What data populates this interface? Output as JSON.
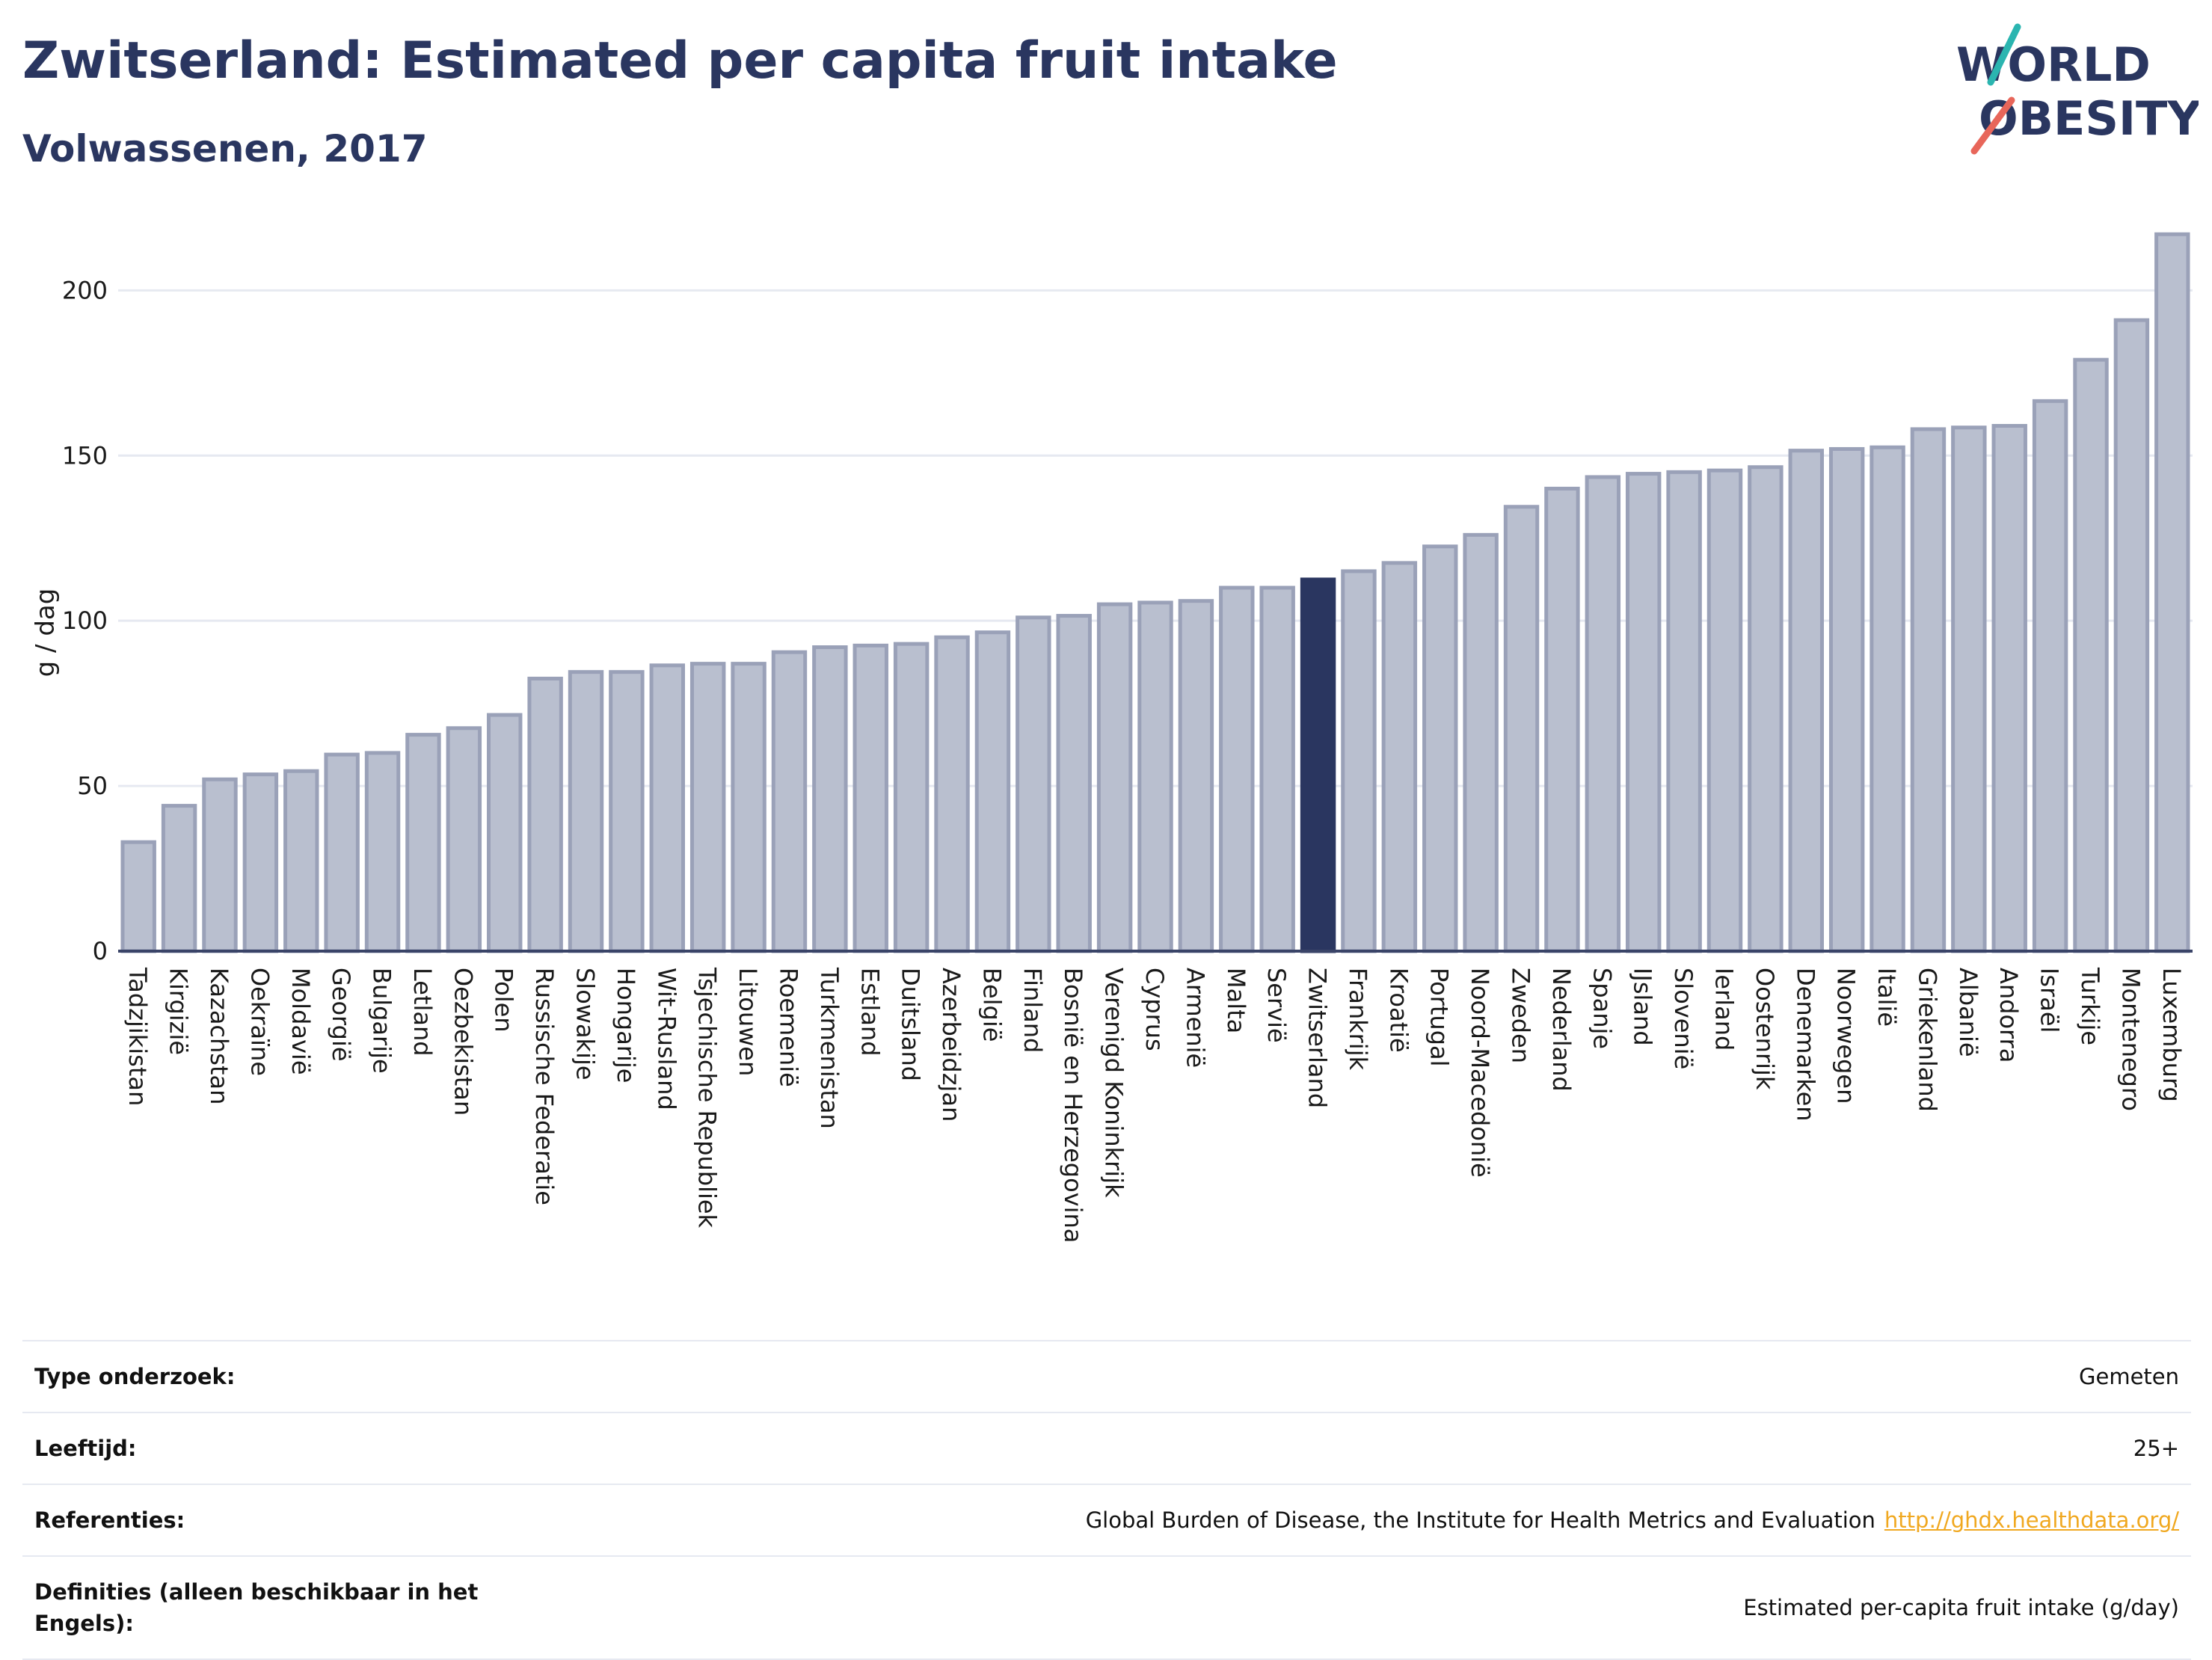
{
  "header": {
    "title": "Zwitserland: Estimated per capita fruit intake",
    "subtitle": "Volwassenen, 2017"
  },
  "logo": {
    "line1": "WORLD",
    "line2": "OBESITY",
    "colors": {
      "text": "#2a3660",
      "teal": "#2bb5b0",
      "coral": "#e8665a"
    }
  },
  "colors": {
    "bar_default": "#b9bfcf",
    "bar_default_stroke": "#9aa1b8",
    "bar_highlight": "#2a3660",
    "gridline": "#e6e9f1",
    "axis_line": "#3a4468"
  },
  "chart_data": {
    "type": "bar",
    "title": "Zwitserland: Estimated per capita fruit intake",
    "subtitle": "Volwassenen, 2017",
    "xlabel": "",
    "ylabel": "g / dag",
    "ylim": [
      0,
      220
    ],
    "yticks": [
      0,
      50,
      100,
      150,
      200
    ],
    "grid": true,
    "highlight": "Zwitserland",
    "categories": [
      "Tadzjikistan",
      "Kirgizië",
      "Kazachstan",
      "Oekraïne",
      "Moldavië",
      "Georgië",
      "Bulgarije",
      "Letland",
      "Oezbekistan",
      "Polen",
      "Russische Federatie",
      "Slowakije",
      "Hongarije",
      "Wit-Rusland",
      "Tsjechische Republiek",
      "Litouwen",
      "Roemenië",
      "Turkmenistan",
      "Estland",
      "Duitsland",
      "Azerbeidzjan",
      "België",
      "Finland",
      "Bosnië en Herzegovina",
      "Verenigd Koninkrijk",
      "Cyprus",
      "Armenië",
      "Malta",
      "Servië",
      "Zwitserland",
      "Frankrijk",
      "Kroatië",
      "Portugal",
      "Noord-Macedonië",
      "Zweden",
      "Nederland",
      "Spanje",
      "IJsland",
      "Slovenië",
      "Ierland",
      "Oostenrijk",
      "Denemarken",
      "Noorwegen",
      "Italië",
      "Griekenland",
      "Albanië",
      "Andorra",
      "Israël",
      "Turkije",
      "Montenegro",
      "Luxemburg"
    ],
    "values": [
      33,
      44,
      52,
      53.5,
      54.5,
      59.5,
      60,
      65.5,
      67.5,
      71.5,
      82.5,
      84.5,
      84.5,
      86.5,
      87,
      87,
      90.5,
      92,
      92.5,
      93,
      95,
      96.5,
      101,
      101.5,
      105,
      105.5,
      106,
      110,
      110,
      112.5,
      115,
      117.5,
      122.5,
      126,
      134.5,
      140,
      143.5,
      144.5,
      145,
      145.5,
      146.5,
      151.5,
      152,
      152.5,
      158,
      158.5,
      159,
      166.5,
      179,
      191,
      217
    ]
  },
  "info": {
    "rows": [
      {
        "label": "Type onderzoek:",
        "value": "Gemeten",
        "link": ""
      },
      {
        "label": "Leeftijd:",
        "value": "25+",
        "link": ""
      },
      {
        "label": "Referenties:",
        "value": "Global Burden of Disease, the Institute for Health Metrics and Evaluation",
        "link": "http://ghdx.healthdata.org/"
      },
      {
        "label": "Definities (alleen beschikbaar in het Engels):",
        "value": "Estimated per-capita fruit intake (g/day)",
        "link": ""
      }
    ]
  }
}
